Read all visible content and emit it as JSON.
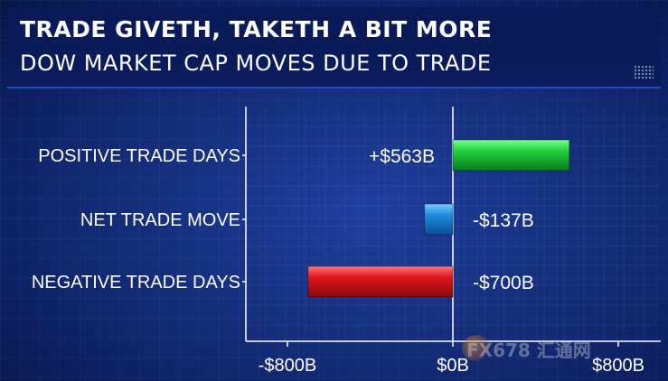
{
  "header": {
    "title": "TRADE GIVETH, TAKETH A BIT MORE",
    "subtitle": "DOW MARKET CAP MOVES DUE TO TRADE"
  },
  "chart_data": {
    "type": "bar",
    "orientation": "horizontal",
    "title": "TRADE GIVETH, TAKETH A BIT MORE",
    "subtitle": "DOW MARKET CAP MOVES DUE TO TRADE",
    "categories": [
      "POSITIVE TRADE DAYS",
      "NET TRADE MOVE",
      "NEGATIVE TRADE DAYS"
    ],
    "values": [
      563,
      -137,
      -700
    ],
    "value_labels": [
      "+$563B",
      "-$137B",
      "-$700B"
    ],
    "bar_colors": [
      "#1ec43a",
      "#1f8fe0",
      "#e0161c"
    ],
    "xlim": [
      -800,
      800
    ],
    "x_ticks": [
      -800,
      0,
      800
    ],
    "x_tick_labels": [
      "-$800B",
      "$0B",
      "$800B"
    ],
    "grid": true
  },
  "watermark": "FX678 汇通网"
}
